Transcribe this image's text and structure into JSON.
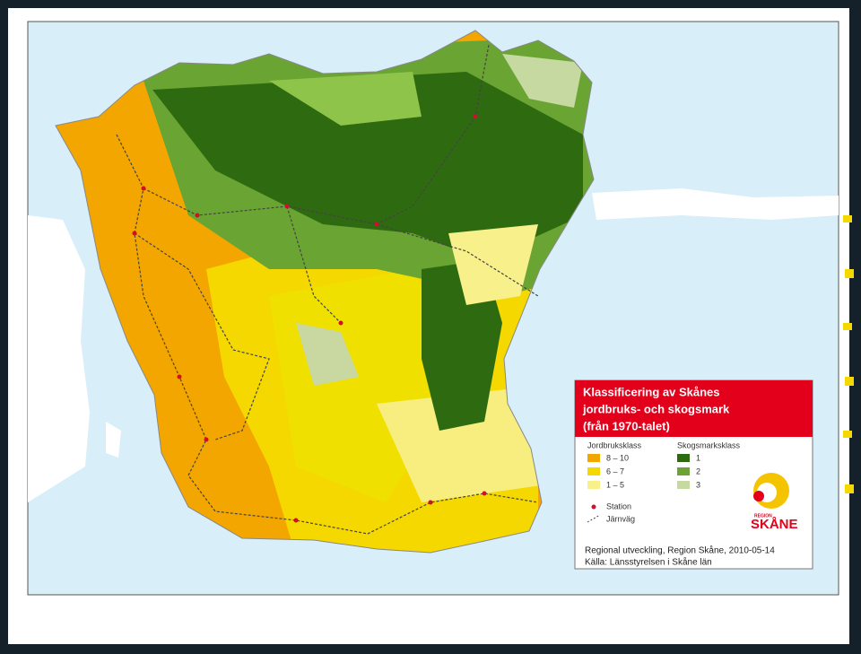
{
  "legend": {
    "title": [
      "Klassificering av Skånes",
      "jordbruks- och skogsmark",
      "(från 1970-talet)"
    ],
    "agriculture": {
      "heading": "Jordbruksklass",
      "classes": [
        "8 – 10",
        "6 – 7",
        "1 – 5"
      ]
    },
    "forest": {
      "heading": "Skogsmarksklass",
      "classes": [
        "1",
        "2",
        "3"
      ]
    },
    "symbols": [
      "Station",
      "Järnväg"
    ],
    "logo": {
      "top": "REGION",
      "bottom": "SKÅNE"
    },
    "credits": [
      "Regional utveckling, Region Skåne, 2010-05-14",
      "Källa: Länsstyrelsen i Skåne län"
    ]
  }
}
